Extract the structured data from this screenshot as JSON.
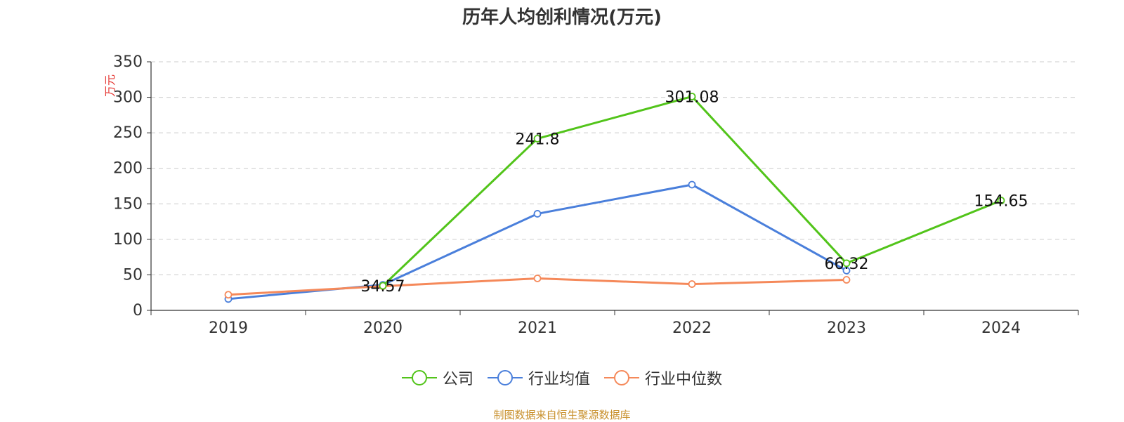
{
  "chart_data": {
    "type": "line",
    "title": "历年人均创利情况(万元)",
    "ylabel": "万元",
    "xlabel": "",
    "ylim": [
      0,
      350
    ],
    "yticks": [
      0,
      50,
      100,
      150,
      200,
      250,
      300,
      350
    ],
    "categories": [
      "2019",
      "2020",
      "2021",
      "2022",
      "2023",
      "2024"
    ],
    "series": [
      {
        "name": "公司",
        "color": "#52c41a",
        "values": [
          null,
          34.57,
          241.8,
          301.08,
          66.32,
          154.65
        ],
        "labels": [
          null,
          "34.57",
          "241.8",
          "301.08",
          "66.32",
          "154.65"
        ]
      },
      {
        "name": "行业均值",
        "color": "#4a7fdb",
        "values": [
          16,
          36,
          136,
          177,
          56,
          null
        ]
      },
      {
        "name": "行业中位数",
        "color": "#f5895a",
        "values": [
          22,
          34,
          45,
          37,
          43,
          null
        ]
      }
    ],
    "grid": true,
    "legend_position": "bottom"
  },
  "source_note": "制图数据来自恒生聚源数据库",
  "axis_label_color": "#e53935",
  "title_color": "#333333"
}
